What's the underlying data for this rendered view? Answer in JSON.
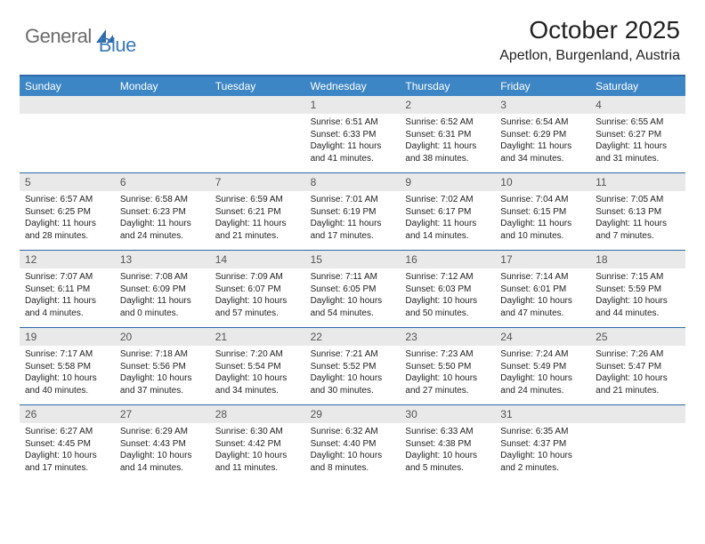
{
  "logo": {
    "text1": "General",
    "text2": "Blue"
  },
  "title": "October 2025",
  "location": "Apetlon, Burgenland, Austria",
  "colors": {
    "header_bar": "#3d86c6",
    "header_text": "#ffffff",
    "rule": "#2f6aa8",
    "daynum_bg": "#e9e9e9",
    "logo_gray": "#6b6b6b",
    "logo_blue": "#3a7ab8"
  },
  "day_names": [
    "Sunday",
    "Monday",
    "Tuesday",
    "Wednesday",
    "Thursday",
    "Friday",
    "Saturday"
  ],
  "weeks": [
    [
      {
        "n": "",
        "empty": true
      },
      {
        "n": "",
        "empty": true
      },
      {
        "n": "",
        "empty": true
      },
      {
        "n": "1",
        "sunrise": "6:51 AM",
        "sunset": "6:33 PM",
        "daylight": "11 hours and 41 minutes."
      },
      {
        "n": "2",
        "sunrise": "6:52 AM",
        "sunset": "6:31 PM",
        "daylight": "11 hours and 38 minutes."
      },
      {
        "n": "3",
        "sunrise": "6:54 AM",
        "sunset": "6:29 PM",
        "daylight": "11 hours and 34 minutes."
      },
      {
        "n": "4",
        "sunrise": "6:55 AM",
        "sunset": "6:27 PM",
        "daylight": "11 hours and 31 minutes."
      }
    ],
    [
      {
        "n": "5",
        "sunrise": "6:57 AM",
        "sunset": "6:25 PM",
        "daylight": "11 hours and 28 minutes."
      },
      {
        "n": "6",
        "sunrise": "6:58 AM",
        "sunset": "6:23 PM",
        "daylight": "11 hours and 24 minutes."
      },
      {
        "n": "7",
        "sunrise": "6:59 AM",
        "sunset": "6:21 PM",
        "daylight": "11 hours and 21 minutes."
      },
      {
        "n": "8",
        "sunrise": "7:01 AM",
        "sunset": "6:19 PM",
        "daylight": "11 hours and 17 minutes."
      },
      {
        "n": "9",
        "sunrise": "7:02 AM",
        "sunset": "6:17 PM",
        "daylight": "11 hours and 14 minutes."
      },
      {
        "n": "10",
        "sunrise": "7:04 AM",
        "sunset": "6:15 PM",
        "daylight": "11 hours and 10 minutes."
      },
      {
        "n": "11",
        "sunrise": "7:05 AM",
        "sunset": "6:13 PM",
        "daylight": "11 hours and 7 minutes."
      }
    ],
    [
      {
        "n": "12",
        "sunrise": "7:07 AM",
        "sunset": "6:11 PM",
        "daylight": "11 hours and 4 minutes."
      },
      {
        "n": "13",
        "sunrise": "7:08 AM",
        "sunset": "6:09 PM",
        "daylight": "11 hours and 0 minutes."
      },
      {
        "n": "14",
        "sunrise": "7:09 AM",
        "sunset": "6:07 PM",
        "daylight": "10 hours and 57 minutes."
      },
      {
        "n": "15",
        "sunrise": "7:11 AM",
        "sunset": "6:05 PM",
        "daylight": "10 hours and 54 minutes."
      },
      {
        "n": "16",
        "sunrise": "7:12 AM",
        "sunset": "6:03 PM",
        "daylight": "10 hours and 50 minutes."
      },
      {
        "n": "17",
        "sunrise": "7:14 AM",
        "sunset": "6:01 PM",
        "daylight": "10 hours and 47 minutes."
      },
      {
        "n": "18",
        "sunrise": "7:15 AM",
        "sunset": "5:59 PM",
        "daylight": "10 hours and 44 minutes."
      }
    ],
    [
      {
        "n": "19",
        "sunrise": "7:17 AM",
        "sunset": "5:58 PM",
        "daylight": "10 hours and 40 minutes."
      },
      {
        "n": "20",
        "sunrise": "7:18 AM",
        "sunset": "5:56 PM",
        "daylight": "10 hours and 37 minutes."
      },
      {
        "n": "21",
        "sunrise": "7:20 AM",
        "sunset": "5:54 PM",
        "daylight": "10 hours and 34 minutes."
      },
      {
        "n": "22",
        "sunrise": "7:21 AM",
        "sunset": "5:52 PM",
        "daylight": "10 hours and 30 minutes."
      },
      {
        "n": "23",
        "sunrise": "7:23 AM",
        "sunset": "5:50 PM",
        "daylight": "10 hours and 27 minutes."
      },
      {
        "n": "24",
        "sunrise": "7:24 AM",
        "sunset": "5:49 PM",
        "daylight": "10 hours and 24 minutes."
      },
      {
        "n": "25",
        "sunrise": "7:26 AM",
        "sunset": "5:47 PM",
        "daylight": "10 hours and 21 minutes."
      }
    ],
    [
      {
        "n": "26",
        "sunrise": "6:27 AM",
        "sunset": "4:45 PM",
        "daylight": "10 hours and 17 minutes."
      },
      {
        "n": "27",
        "sunrise": "6:29 AM",
        "sunset": "4:43 PM",
        "daylight": "10 hours and 14 minutes."
      },
      {
        "n": "28",
        "sunrise": "6:30 AM",
        "sunset": "4:42 PM",
        "daylight": "10 hours and 11 minutes."
      },
      {
        "n": "29",
        "sunrise": "6:32 AM",
        "sunset": "4:40 PM",
        "daylight": "10 hours and 8 minutes."
      },
      {
        "n": "30",
        "sunrise": "6:33 AM",
        "sunset": "4:38 PM",
        "daylight": "10 hours and 5 minutes."
      },
      {
        "n": "31",
        "sunrise": "6:35 AM",
        "sunset": "4:37 PM",
        "daylight": "10 hours and 2 minutes."
      },
      {
        "n": "",
        "empty": true
      }
    ]
  ],
  "labels": {
    "sunrise_prefix": "Sunrise: ",
    "sunset_prefix": "Sunset: ",
    "daylight_prefix": "Daylight: "
  }
}
